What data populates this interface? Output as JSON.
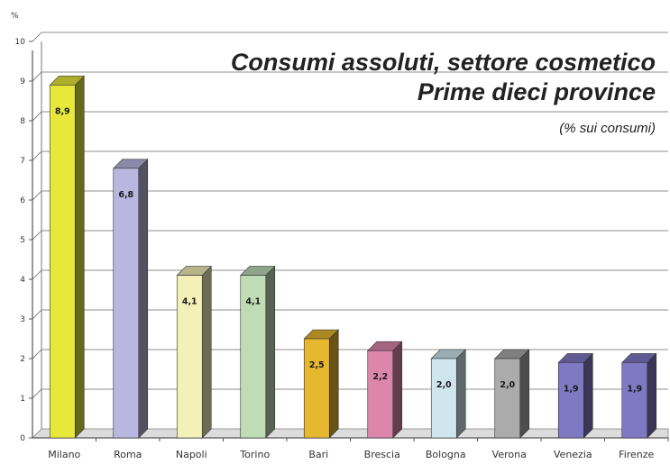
{
  "chart_data": {
    "type": "bar",
    "title": "Consumi assoluti, settore cosmetico",
    "subtitle": "Prime dieci province",
    "note": "(% sui consumi)",
    "ylabel": "%",
    "xlabel": "",
    "ylim": [
      0,
      10
    ],
    "yticks": [
      0,
      1,
      2,
      3,
      4,
      5,
      6,
      7,
      8,
      9,
      10
    ],
    "grid": true,
    "categories": [
      "Milano",
      "Roma",
      "Napoli",
      "Torino",
      "Bari",
      "Brescia",
      "Bologna",
      "Verona",
      "Venezia",
      "Firenze"
    ],
    "values": [
      8.9,
      6.8,
      4.1,
      4.1,
      2.5,
      2.2,
      2.0,
      2.0,
      1.9,
      1.9
    ],
    "value_labels": [
      "8,9",
      "6,8",
      "4,1",
      "4,1",
      "2,5",
      "2,2",
      "2,0",
      "2,0",
      "1,9",
      "1,9"
    ],
    "colors": [
      "#e8e83a",
      "#b9b6df",
      "#f3f0b8",
      "#bfdcb6",
      "#e6b72f",
      "#dc86ac",
      "#cfe6ef",
      "#ababab",
      "#7e79c2",
      "#7e79c2"
    ]
  }
}
